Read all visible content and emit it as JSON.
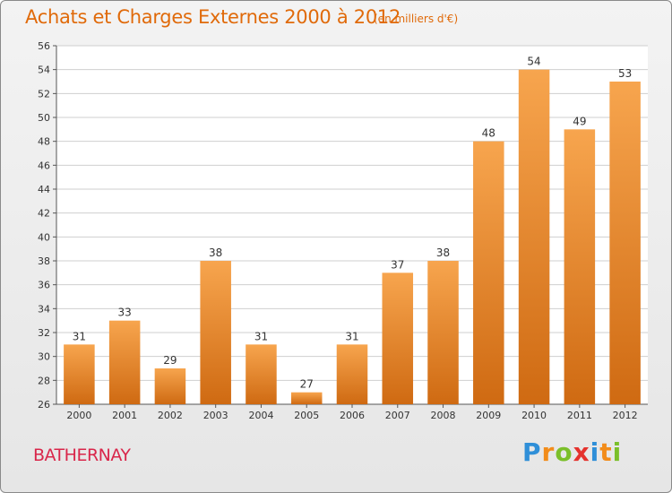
{
  "header": {
    "title": "Achats et Charges Externes 2000 à 2012",
    "unit_note": "(en milliers d'€)"
  },
  "footer": {
    "town": "BATHERNAY",
    "logo": {
      "letters": [
        "P",
        "r",
        "o",
        "x",
        "i",
        "t",
        "i"
      ],
      "colors": [
        "#2f8fd8",
        "#f28c1a",
        "#7bbf2a",
        "#e5322d",
        "#2f8fd8",
        "#f28c1a",
        "#7bbf2a"
      ]
    }
  },
  "colors": {
    "bar_light": "#f7a54e",
    "bar_dark": "#cf6a12",
    "title": "#e06a0a",
    "town": "#d9264a",
    "grid": "#cfcfcf"
  },
  "chart_data": {
    "type": "bar",
    "title": "Achats et Charges Externes 2000 à 2012",
    "subtitle": "(en milliers d'€)",
    "categories": [
      "2000",
      "2001",
      "2002",
      "2003",
      "2004",
      "2005",
      "2006",
      "2007",
      "2008",
      "2009",
      "2010",
      "2011",
      "2012"
    ],
    "values": [
      31,
      33,
      29,
      38,
      31,
      27,
      31,
      37,
      38,
      48,
      54,
      49,
      53
    ],
    "ylim": [
      26,
      56
    ],
    "yticks": [
      26,
      28,
      30,
      32,
      34,
      36,
      38,
      40,
      42,
      44,
      46,
      48,
      50,
      52,
      54,
      56
    ],
    "grid": true,
    "data_labels": true
  }
}
